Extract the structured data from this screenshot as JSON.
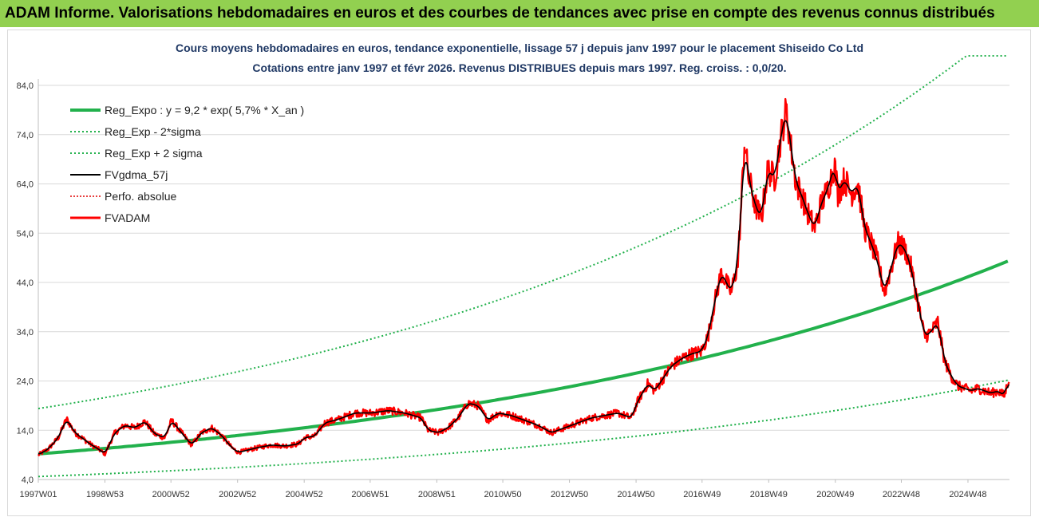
{
  "header": {
    "banner_title": "ADAM Informe. Valorisations hebdomadaires en euros et des courbes de tendances avec prise en compte des revenus connus distribués"
  },
  "chart_data": {
    "type": "line",
    "title": "Cours moyens hebdomadaires en euros, tendance exponentielle, lissage 57 j depuis janv 1997 pour le placement Shiseido Co Ltd",
    "subtitle": "Cotations entre janv 1997 et févr 2026. Revenus DISTRIBUES depuis mars 1997. Reg. croiss. : 0,0/20.",
    "xlabel": "",
    "ylabel": "",
    "ylim": [
      4,
      84
    ],
    "yticks": [
      "4,0",
      "14,0",
      "24,0",
      "34,0",
      "44,0",
      "54,0",
      "64,0",
      "74,0",
      "84,0"
    ],
    "xticks": [
      "1997W01",
      "1998W53",
      "2000W52",
      "2002W52",
      "2004W52",
      "2006W51",
      "2008W51",
      "2010W50",
      "2012W50",
      "2014W50",
      "2016W49",
      "2018W49",
      "2020W49",
      "2022W48",
      "2024W48"
    ],
    "xlim_years": [
      1997.0,
      2026.15
    ],
    "grid": "horizontal",
    "legend_position": "top-left",
    "regression": {
      "a": 9.2,
      "rate": 0.057,
      "sigma_factors": [
        0.5,
        2.0
      ]
    },
    "series": [
      {
        "name": "Reg_Expo : y = 9,2 * exp( 5,7% *  X_an )",
        "kind": "regression",
        "color": "#22b14c",
        "style": "solid"
      },
      {
        "name": "Reg_Exp - 2*sigma",
        "kind": "lower",
        "color": "#22b14c",
        "style": "dotted"
      },
      {
        "name": "Reg_Exp + 2 sigma",
        "kind": "upper",
        "color": "#22b14c",
        "style": "dotted",
        "cap": 90
      },
      {
        "name": "FVgdma_57j",
        "kind": "smoothed",
        "color": "#000000",
        "style": "solid"
      },
      {
        "name": "Perfo. absolue",
        "kind": "perfo",
        "color": "#e00000",
        "style": "dotted"
      },
      {
        "name": "FVADAM",
        "kind": "price",
        "color": "#ff0000",
        "style": "solid",
        "x": [
          1997.0,
          1997.3,
          1997.6,
          1997.85,
          1998.1,
          1998.3,
          1998.6,
          1998.8,
          1999.0,
          1999.3,
          1999.6,
          1999.9,
          2000.2,
          2000.5,
          2000.8,
          2001.0,
          2001.3,
          2001.6,
          2001.9,
          2002.2,
          2002.5,
          2002.8,
          2003.0,
          2003.3,
          2003.6,
          2004.0,
          2004.4,
          2004.8,
          2005.0,
          2005.3,
          2005.6,
          2006.0,
          2006.5,
          2007.0,
          2007.5,
          2008.0,
          2008.5,
          2008.7,
          2009.0,
          2009.3,
          2009.6,
          2009.9,
          2010.2,
          2010.5,
          2010.8,
          2011.2,
          2011.6,
          2012.0,
          2012.4,
          2012.8,
          2013.2,
          2013.6,
          2014.0,
          2014.4,
          2014.8,
          2015.0,
          2015.3,
          2015.5,
          2015.8,
          2016.0,
          2016.3,
          2016.6,
          2016.9,
          2017.1,
          2017.3,
          2017.5,
          2017.8,
          2018.0,
          2018.1,
          2018.2,
          2018.3,
          2018.5,
          2018.7,
          2018.9,
          2019.1,
          2019.3,
          2019.45,
          2019.6,
          2019.75,
          2019.9,
          2020.1,
          2020.3,
          2020.5,
          2020.7,
          2020.9,
          2021.0,
          2021.2,
          2021.4,
          2021.6,
          2021.8,
          2022.0,
          2022.2,
          2022.4,
          2022.6,
          2022.8,
          2023.0,
          2023.2,
          2023.4,
          2023.6,
          2023.8,
          2024.0,
          2024.2,
          2024.4,
          2024.6,
          2024.8,
          2025.0,
          2025.2,
          2025.4,
          2025.6,
          2025.8,
          2026.0,
          2026.15
        ],
        "values": [
          9.0,
          10.2,
          12.5,
          16.3,
          13.5,
          12.5,
          11.0,
          10.2,
          9.2,
          13.5,
          15.0,
          14.5,
          15.8,
          13.2,
          12.5,
          16.0,
          13.5,
          11.0,
          13.5,
          14.5,
          13.0,
          10.5,
          9.5,
          10.0,
          10.5,
          11.0,
          10.8,
          11.2,
          12.5,
          12.8,
          15.5,
          16.2,
          17.5,
          17.5,
          18.0,
          17.5,
          16.5,
          14.0,
          13.5,
          14.5,
          16.5,
          19.5,
          19.0,
          16.0,
          17.5,
          17.0,
          16.0,
          15.0,
          13.5,
          14.5,
          15.5,
          16.5,
          17.0,
          17.5,
          16.5,
          20.0,
          23.5,
          22.0,
          25.0,
          27.0,
          28.5,
          29.5,
          30.0,
          33.0,
          40.0,
          46.0,
          42.0,
          48.0,
          60.0,
          73.0,
          66.0,
          60.0,
          57.0,
          67.0,
          65.0,
          74.0,
          79.0,
          71.0,
          64.0,
          62.0,
          58.0,
          55.0,
          60.0,
          63.0,
          68.0,
          62.0,
          65.0,
          62.0,
          64.0,
          55.0,
          52.0,
          48.0,
          42.0,
          47.0,
          52.0,
          51.0,
          47.0,
          40.0,
          33.0,
          34.0,
          36.0,
          28.0,
          25.0,
          23.0,
          22.5,
          22.0,
          22.5,
          22.0,
          21.5,
          22.0,
          21.0,
          25.0
        ]
      }
    ]
  }
}
